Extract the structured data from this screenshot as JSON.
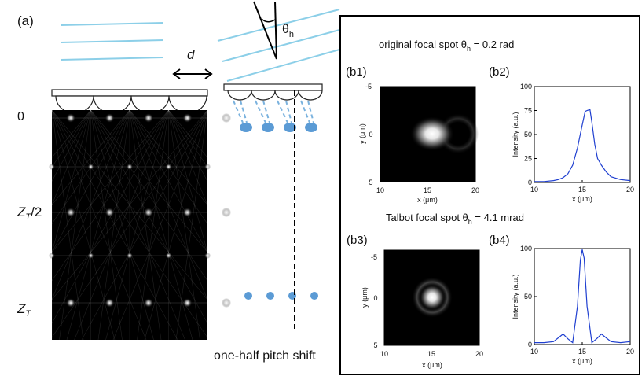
{
  "panel_a": {
    "label": "(a)",
    "distance_label": "d",
    "angle_symbol": "θ",
    "angle_subscript": "h",
    "z_labels": {
      "zero": "0",
      "half_main": "Z",
      "half_sub": "T",
      "half_suffix": "/2",
      "full_main": "Z",
      "full_sub": "T"
    },
    "shift_caption": "one-half pitch shift"
  },
  "panel_b": {
    "original_title": {
      "prefix": "original focal spot θ",
      "sub": "h",
      "suffix": " = 0.2 rad"
    },
    "talbot_title": {
      "prefix": "Talbot focal spot θ",
      "sub": "h",
      "suffix": " = 4.1 mrad"
    },
    "b1": {
      "label": "(b1)",
      "xlabel": "x (μm)",
      "ylabel": "y (μm)",
      "xticks": [
        "10",
        "15",
        "20"
      ],
      "yticks": [
        "-5",
        "0",
        "5"
      ]
    },
    "b3": {
      "label": "(b3)",
      "xlabel": "x (μm)",
      "ylabel": "y (μm)",
      "xticks": [
        "10",
        "15",
        "20"
      ],
      "yticks": [
        "-5",
        "0",
        "5"
      ]
    }
  },
  "chart_data": [
    {
      "type": "line",
      "label": "(b2)",
      "xlabel": "x (μm)",
      "ylabel": "Intensity (a.u.)",
      "xlim": [
        10,
        20
      ],
      "ylim": [
        0,
        100
      ],
      "xticks": [
        10,
        15,
        20
      ],
      "yticks": [
        0,
        25,
        50,
        75,
        100
      ],
      "color": "#1f3fd0",
      "x": [
        10,
        11,
        12,
        12.5,
        13,
        13.5,
        14,
        14.5,
        15,
        15.3,
        15.5,
        15.8,
        16,
        16.3,
        16.6,
        17,
        17.5,
        18,
        19,
        20
      ],
      "y": [
        1,
        1,
        2,
        3,
        5,
        9,
        18,
        36,
        60,
        74,
        75,
        76,
        63,
        40,
        25,
        18,
        11,
        6,
        3,
        2
      ]
    },
    {
      "type": "line",
      "label": "(b4)",
      "xlabel": "x (μm)",
      "ylabel": "Intensity (a.u.)",
      "xlim": [
        10,
        20
      ],
      "ylim": [
        0,
        100
      ],
      "xticks": [
        10,
        15,
        20
      ],
      "yticks": [
        0,
        50,
        100
      ],
      "color": "#1f3fd0",
      "x": [
        10,
        11,
        12,
        12.5,
        13,
        13.5,
        14,
        14.5,
        14.8,
        15,
        15.2,
        15.5,
        16,
        16.5,
        17,
        17.5,
        18,
        19,
        20
      ],
      "y": [
        2,
        2,
        3,
        7,
        11,
        6,
        2,
        40,
        88,
        99,
        90,
        40,
        2,
        6,
        11,
        7,
        3,
        2,
        3
      ]
    }
  ]
}
